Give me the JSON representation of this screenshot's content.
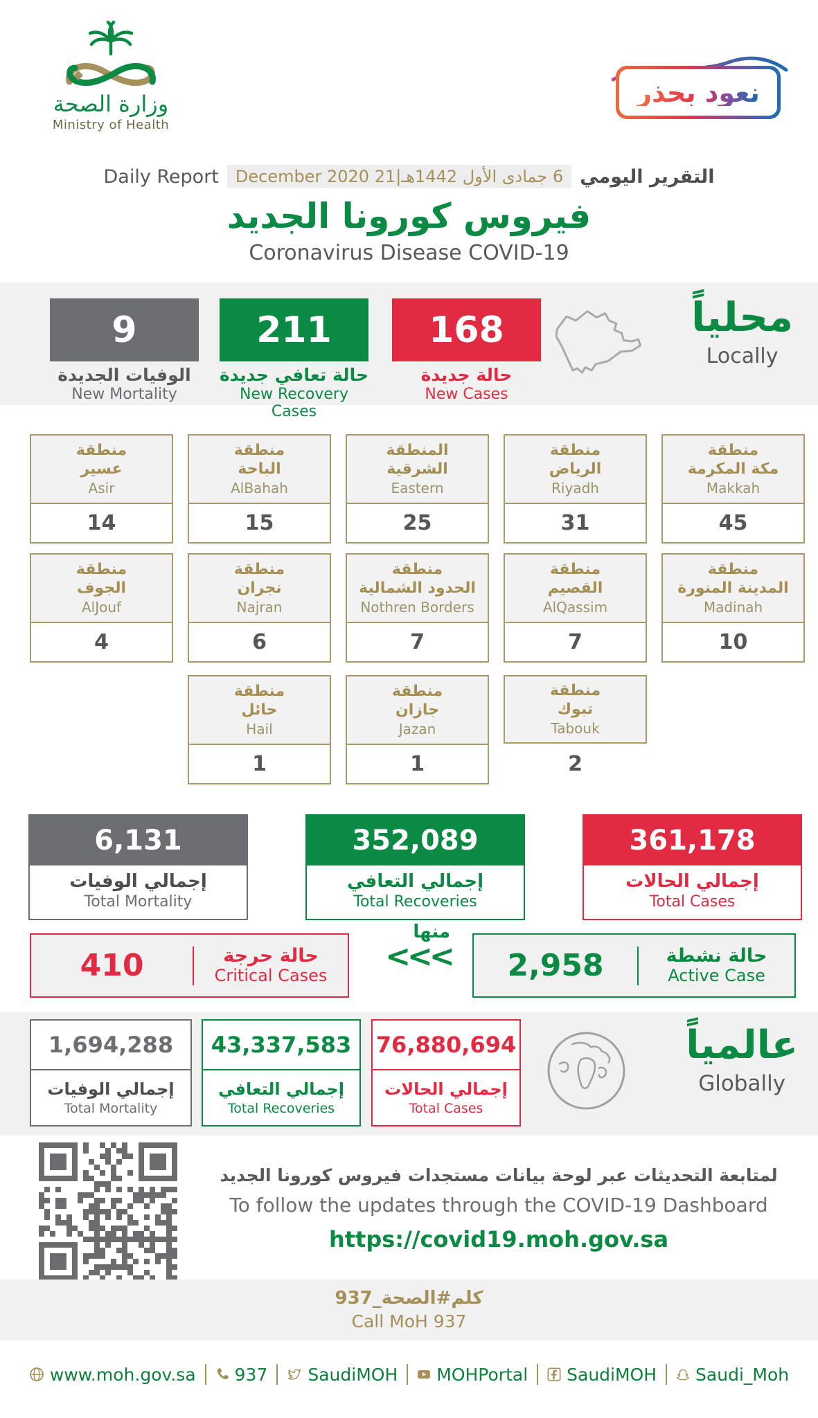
{
  "colors": {
    "green": "#0b8a44",
    "red": "#e22b42",
    "gray": "#6d6e71",
    "gold": "#a6905a",
    "band": "#f1f1f2"
  },
  "header": {
    "logo_ar": "وزارة الصحة",
    "logo_en": "Ministry of Health",
    "badge": "نعود بحذر",
    "report_ar": "التقرير اليومي",
    "report_date": "6 جمادى الأول 1442هـ|21 December 2020",
    "report_en": "Daily Report",
    "title_ar": "فيروس كورونا الجديد",
    "title_en": "Coronavirus Disease COVID-19"
  },
  "locally": {
    "title_ar": "محلياً",
    "title_en": "Locally",
    "new_mortality": {
      "value": "9",
      "label_ar": "الوفيات الجديدة",
      "label_en": "New Mortality"
    },
    "new_recovery": {
      "value": "211",
      "label_ar": "حالة تعافي جديدة",
      "label_en": "New Recovery Cases"
    },
    "new_cases": {
      "value": "168",
      "label_ar": "حالة جديدة",
      "label_en": "New Cases"
    }
  },
  "regions": [
    {
      "ar": "منطقة\nعسير",
      "en": "Asir",
      "value": "14"
    },
    {
      "ar": "منطقة\nالباحة",
      "en": "AlBahah",
      "value": "15"
    },
    {
      "ar": "المنطقة\nالشرقية",
      "en": "Eastern",
      "value": "25"
    },
    {
      "ar": "منطقة\nالرياض",
      "en": "Riyadh",
      "value": "31"
    },
    {
      "ar": "منطقة\nمكة المكرمة",
      "en": "Makkah",
      "value": "45"
    },
    {
      "ar": "منطقة\nالجوف",
      "en": "AlJouf",
      "value": "4"
    },
    {
      "ar": "منطقة\nنجران",
      "en": "Najran",
      "value": "6"
    },
    {
      "ar": "منطقة\nالحدود الشمالية",
      "en": "Nothren Borders",
      "value": "7"
    },
    {
      "ar": "منطقة\nالقصيم",
      "en": "AlQassim",
      "value": "7"
    },
    {
      "ar": "منطقة\nالمدينة المنورة",
      "en": "Madinah",
      "value": "10"
    },
    {
      "ar": "منطقة\nحائل",
      "en": "Hail",
      "value": "1"
    },
    {
      "ar": "منطقة\nجازان",
      "en": "Jazan",
      "value": "1"
    },
    {
      "ar": "منطقة\nتبوك",
      "en": "Tabouk",
      "value": "2"
    }
  ],
  "totals": {
    "mortality": {
      "value": "6,131",
      "label_ar": "إجمالي الوفيات",
      "label_en": "Total Mortality"
    },
    "recoveries": {
      "value": "352,089",
      "label_ar": "إجمالي التعافي",
      "label_en": "Total Recoveries"
    },
    "cases": {
      "value": "361,178",
      "label_ar": "إجمالي الحالات",
      "label_en": "Total Cases"
    }
  },
  "critical": {
    "value": "410",
    "label_ar": "حالة حرجة",
    "label_en": "Critical Cases"
  },
  "of_which": {
    "label_ar": "منها",
    "arrows": "<<<"
  },
  "active": {
    "value": "2,958",
    "label_ar": "حالة نشطة",
    "label_en": "Active Case"
  },
  "globally": {
    "title_ar": "عالمياً",
    "title_en": "Globally",
    "mortality": {
      "value": "1,694,288",
      "label_ar": "إجمالي الوفيات",
      "label_en": "Total Mortality"
    },
    "recoveries": {
      "value": "43,337,583",
      "label_ar": "إجمالي التعافي",
      "label_en": "Total Recoveries"
    },
    "cases": {
      "value": "76,880,694",
      "label_ar": "إجمالي الحالات",
      "label_en": "Total Cases"
    }
  },
  "dashboard": {
    "text_ar": "لمتابعة التحديثات عبر لوحة بيانات مستجدات فيروس كورونا الجديد",
    "text_en": "To follow the updates through the COVID-19 Dashboard",
    "url": "https://covid19.moh.gov.sa"
  },
  "call": {
    "ar": "كلم#الصحة_937",
    "en": "Call MoH 937"
  },
  "footer": {
    "items": [
      {
        "icon": "globe-icon",
        "label": "www.moh.gov.sa"
      },
      {
        "icon": "phone-icon",
        "label": "937"
      },
      {
        "icon": "twitter-icon",
        "label": "SaudiMOH"
      },
      {
        "icon": "youtube-icon",
        "label": "MOHPortal"
      },
      {
        "icon": "facebook-icon",
        "label": "SaudiMOH"
      },
      {
        "icon": "snapchat-icon",
        "label": "Saudi_Moh"
      }
    ]
  }
}
